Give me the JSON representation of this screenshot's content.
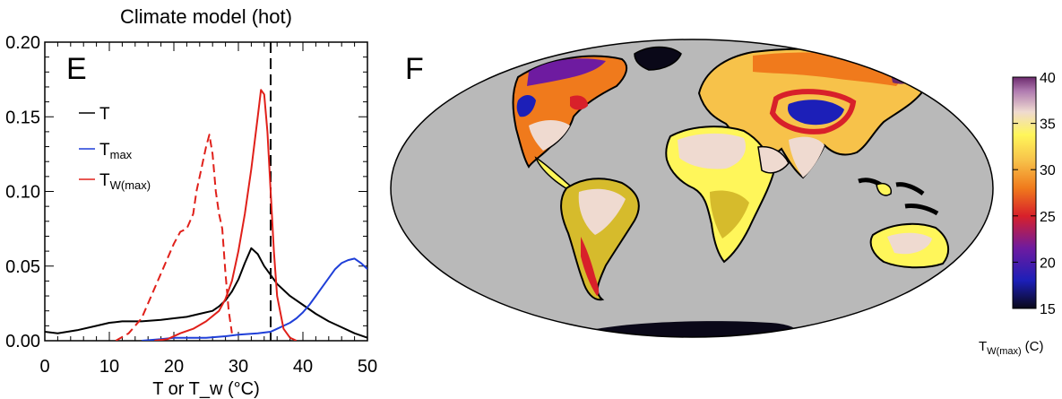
{
  "chart_data": [
    {
      "type": "line",
      "panel_label": "E",
      "title": "Climate model (hot)",
      "xlabel": "T or T_w (°C)",
      "ylabel": "",
      "xlim": [
        0,
        50
      ],
      "ylim": [
        0,
        0.2
      ],
      "xticks": [
        "0",
        "10",
        "20",
        "30",
        "40",
        "50"
      ],
      "yticks": [
        "0.00",
        "0.05",
        "0.10",
        "0.15",
        "0.20"
      ],
      "grid": false,
      "legend_position": "upper-left",
      "colors": {
        "T": "#000000",
        "T_max": "#1f3fd8",
        "T_w_max": "#e0201a",
        "reference": "#000000"
      },
      "series": [
        {
          "name": "T",
          "label_main": "T",
          "label_sub": "",
          "style": "solid",
          "color_key": "T",
          "x": [
            0,
            2,
            5,
            8,
            10,
            12,
            15,
            18,
            20,
            22,
            24,
            26,
            27,
            28,
            29,
            30,
            31,
            32,
            33,
            34,
            35,
            36,
            38,
            40,
            42,
            44,
            46,
            48,
            50
          ],
          "y": [
            0.006,
            0.005,
            0.007,
            0.01,
            0.012,
            0.013,
            0.013,
            0.014,
            0.015,
            0.016,
            0.018,
            0.02,
            0.023,
            0.027,
            0.033,
            0.041,
            0.052,
            0.062,
            0.058,
            0.05,
            0.044,
            0.038,
            0.03,
            0.024,
            0.018,
            0.013,
            0.009,
            0.005,
            0.002
          ]
        },
        {
          "name": "T_max",
          "label_main": "T",
          "label_sub": "max",
          "style": "solid",
          "color_key": "T_max",
          "x": [
            15,
            18,
            20,
            22,
            25,
            28,
            30,
            33,
            35,
            36,
            37,
            38,
            39,
            40,
            41,
            42,
            43,
            44,
            45,
            46,
            47,
            48,
            49,
            50
          ],
          "y": [
            0,
            0.001,
            0.002,
            0.002,
            0.002,
            0.003,
            0.004,
            0.005,
            0.006,
            0.008,
            0.01,
            0.012,
            0.015,
            0.019,
            0.024,
            0.03,
            0.036,
            0.042,
            0.048,
            0.052,
            0.054,
            0.055,
            0.052,
            0.048
          ]
        },
        {
          "name": "T_w_max",
          "label_main": "T",
          "label_sub": "W(max)",
          "style": "solid",
          "color_key": "T_w_max",
          "x": [
            17,
            19,
            21,
            23,
            25,
            27,
            28,
            29,
            30,
            31,
            32,
            33,
            33.5,
            34,
            34.5,
            35,
            35.5,
            36,
            37,
            38,
            39
          ],
          "y": [
            0,
            0.001,
            0.005,
            0.008,
            0.013,
            0.02,
            0.028,
            0.04,
            0.06,
            0.085,
            0.115,
            0.15,
            0.168,
            0.165,
            0.14,
            0.1,
            0.06,
            0.03,
            0.008,
            0.002,
            0
          ]
        },
        {
          "name": "",
          "label_main": "",
          "label_sub": "",
          "style": "dashed",
          "color_key": "T_w_max",
          "x": [
            11,
            13,
            15,
            16,
            17,
            18,
            19,
            20,
            21,
            22,
            23,
            23.5,
            24,
            24.5,
            25,
            25.5,
            26,
            26.5,
            27,
            27.5,
            28,
            28.5,
            29
          ],
          "y": [
            0,
            0.005,
            0.015,
            0.025,
            0.035,
            0.045,
            0.055,
            0.065,
            0.073,
            0.075,
            0.085,
            0.1,
            0.11,
            0.12,
            0.13,
            0.138,
            0.125,
            0.1,
            0.085,
            0.075,
            0.045,
            0.02,
            0.005
          ]
        }
      ],
      "reference_line": {
        "x": 35,
        "style": "dashed"
      }
    },
    {
      "type": "heatmap",
      "panel_label": "F",
      "projection": "mollweide",
      "colorbar_label_main": "T",
      "colorbar_label_sub": "W(max)",
      "colorbar_label_unit": "(C)",
      "colorbar_range": [
        15,
        40
      ],
      "colorbar_ticks": [
        "15",
        "20",
        "25",
        "30",
        "35",
        "40"
      ],
      "colors": {
        "ocean": "#b9b9b9",
        "land": "#d6bb2c",
        "stops": [
          "#0a0818",
          "#1c1fb8",
          "#6e1ba0",
          "#d8202a",
          "#f07a1c",
          "#f7c24a",
          "#fff65a",
          "#efdad0",
          "#b07bb0",
          "#6c2a6e"
        ]
      }
    }
  ]
}
